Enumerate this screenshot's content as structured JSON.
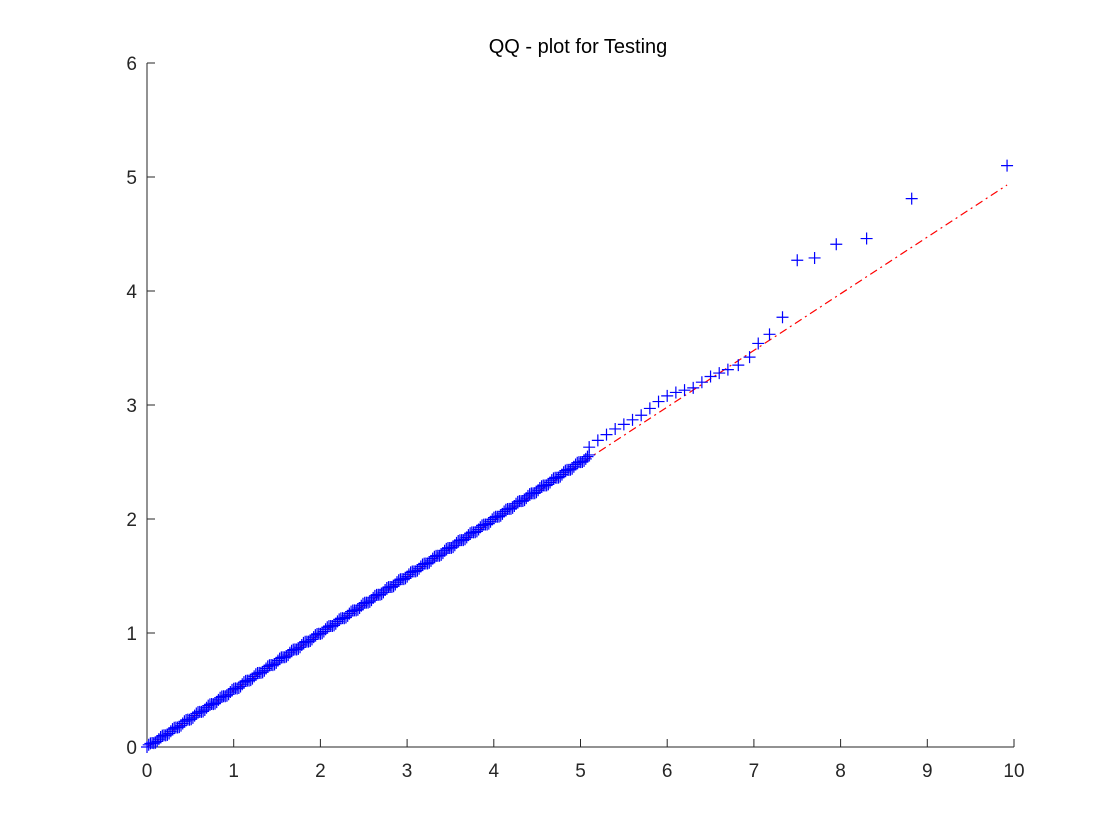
{
  "chart_data": {
    "type": "scatter",
    "title": "QQ - plot for Testing",
    "xlabel": "",
    "ylabel": "",
    "xlim": [
      0,
      10
    ],
    "ylim": [
      0,
      6
    ],
    "grid": false,
    "legend": "none",
    "x_ticks": [
      "0",
      "1",
      "2",
      "3",
      "4",
      "5",
      "6",
      "7",
      "8",
      "9",
      "10"
    ],
    "y_ticks": [
      "0",
      "1",
      "2",
      "3",
      "4",
      "5",
      "6"
    ],
    "colors": {
      "points": "#0000ff",
      "reference_line": "#ff0000",
      "axes": "#262626",
      "background": "#ffffff"
    },
    "marker": "plus",
    "series": [
      {
        "values_description": "sample quantiles",
        "points": [
          [
            5.1,
            2.63
          ],
          [
            5.2,
            2.69
          ],
          [
            5.3,
            2.74
          ],
          [
            5.4,
            2.79
          ],
          [
            5.5,
            2.83
          ],
          [
            5.6,
            2.87
          ],
          [
            5.7,
            2.91
          ],
          [
            5.8,
            2.97
          ],
          [
            5.9,
            3.03
          ],
          [
            6.0,
            3.08
          ],
          [
            6.1,
            3.11
          ],
          [
            6.2,
            3.13
          ],
          [
            6.3,
            3.15
          ],
          [
            6.4,
            3.2
          ],
          [
            6.5,
            3.25
          ],
          [
            6.6,
            3.28
          ],
          [
            6.7,
            3.31
          ],
          [
            6.82,
            3.35
          ],
          [
            6.95,
            3.42
          ],
          [
            7.05,
            3.54
          ],
          [
            7.18,
            3.62
          ],
          [
            7.33,
            3.77
          ],
          [
            7.5,
            4.27
          ],
          [
            7.7,
            4.29
          ],
          [
            7.95,
            4.41
          ],
          [
            8.3,
            4.46
          ],
          [
            8.82,
            4.81
          ],
          [
            9.92,
            5.1
          ]
        ]
      }
    ],
    "dense_region": {
      "x_range": [
        0,
        5.1
      ],
      "y_at_start": 0.0,
      "slope": 0.5
    },
    "reference_line": {
      "style": "dash-dot",
      "x_range": [
        0,
        9.92
      ],
      "y_range": [
        0,
        4.93
      ]
    }
  }
}
